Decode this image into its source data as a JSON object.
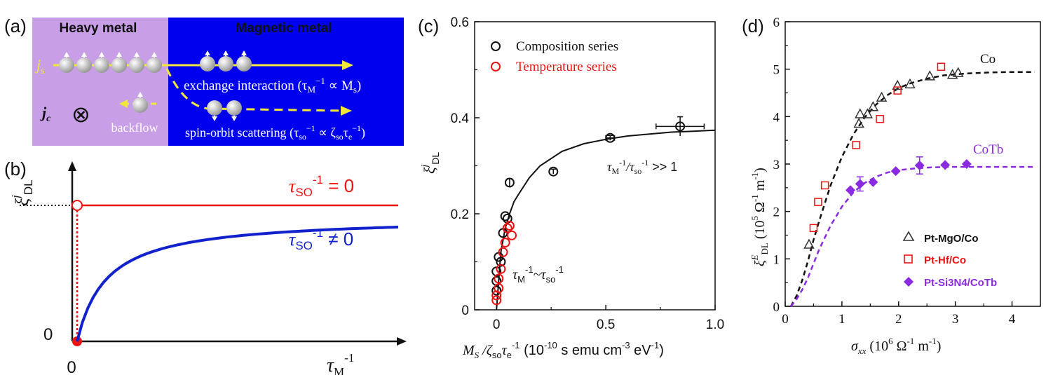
{
  "panel_a": {
    "label": "(a)",
    "heavy_metal": "Heavy metal",
    "magnetic_metal": "Magnetic metal",
    "js": "j",
    "js_sub": "s",
    "jc": "j",
    "jc_sub": "c",
    "otimes": "⊗",
    "backflow": "backflow",
    "exchange_text": "exchange interaction (τ",
    "exchange_mid": "M",
    "exchange_sup": "−1",
    "exchange_end": " ∝ M",
    "exchange_s": "s",
    "exchange_close": ")",
    "so_text": "spin-orbit scattering (τ",
    "so_sub": "so",
    "so_sup": "−1",
    "so_mid": " ∝ ζ",
    "so_sub2": "so",
    "so_tau": "τ",
    "so_e": "e",
    "so_sup2": "−1",
    "so_close": ")",
    "colors": {
      "heavy": "#c89ee6",
      "magnetic": "#0000ee",
      "arrow": "#f2e83a"
    }
  },
  "panel_b": {
    "label": "(b)",
    "ylabel": "ξ",
    "ylabel_sup": "j",
    "ylabel_sub": "DL",
    "xlabel": "τ",
    "xlabel_sub": "M",
    "xlabel_sup": "-1",
    "zero_y": "0",
    "zero_x": "0",
    "red_label": "τ",
    "red_sub": "SO",
    "red_sup": "-1",
    "red_eq": " = 0",
    "blue_label": "τ",
    "blue_sub": "SO",
    "blue_sup": "-1",
    "blue_eq": " ≠ 0",
    "colors": {
      "red": "#ee1111",
      "blue": "#1122cc"
    }
  },
  "chart_data": [
    {
      "type": "scatter",
      "panel": "(c)",
      "xlabel": "M",
      "xlabel_sub": "S",
      "xlabel_rest": " /ζ",
      "xlabel_so": "so",
      "xlabel_tau": "τ",
      "xlabel_e": "e",
      "xlabel_sup": "-1",
      "xlabel_units": " (10",
      "xlabel_exp": "-10",
      "xlabel_units2": " s emu cm",
      "xlabel_exp2": "-3",
      "xlabel_units3": " eV",
      "xlabel_exp3": "-1",
      "xlabel_close": ")",
      "ylabel": "ξ",
      "ylabel_sup": "j",
      "ylabel_sub": "DL",
      "xlim": [
        -0.1,
        1.0
      ],
      "ylim": [
        0,
        0.6
      ],
      "xticks": [
        "0",
        "0.5",
        "1.0"
      ],
      "xtick_values": [
        0,
        0.5,
        1.0
      ],
      "yticks": [
        "0",
        "0.2",
        "0.4",
        "0.6"
      ],
      "ytick_values": [
        0,
        0.2,
        0.4,
        0.6
      ],
      "annotation_high": "τ",
      "annotation_high_sub": "M",
      "annotation_high_sup": "-1",
      "annotation_high_mid": "/τ",
      "annotation_high_sub2": "so",
      "annotation_high_sup2": "-1",
      "annotation_high_end": " >> 1",
      "annotation_low": "τ",
      "annotation_low_sub": "M",
      "annotation_low_sup": "-1",
      "annotation_low_mid": "~τ",
      "annotation_low_sub2": "so",
      "annotation_low_sup2": "-1",
      "legend": [
        "Composition series",
        "Temperature series"
      ],
      "legend_position": "top-left",
      "series": [
        {
          "name": "Composition series",
          "color": "#111111",
          "points": [
            {
              "x": 0.0,
              "y": 0.04
            },
            {
              "x": 0.0,
              "y": 0.06
            },
            {
              "x": 0.0,
              "y": 0.08
            },
            {
              "x": 0.01,
              "y": 0.11
            },
            {
              "x": 0.02,
              "y": 0.1
            },
            {
              "x": 0.03,
              "y": 0.16
            },
            {
              "x": 0.04,
              "y": 0.195
            },
            {
              "x": 0.05,
              "y": 0.19
            },
            {
              "x": 0.06,
              "y": 0.265
            },
            {
              "x": 0.26,
              "y": 0.288
            },
            {
              "x": 0.52,
              "y": 0.358
            },
            {
              "x": 0.84,
              "y": 0.382
            }
          ],
          "xerr": [
            0,
            0,
            0,
            0,
            0,
            0,
            0,
            0,
            0,
            0,
            0.02,
            0.11
          ],
          "yerr": [
            0,
            0,
            0,
            0,
            0,
            0,
            0,
            0,
            0.008,
            0.005,
            0.005,
            0.02
          ]
        },
        {
          "name": "Temperature series",
          "color": "#ee1111",
          "points": [
            {
              "x": 0.0,
              "y": 0.02
            },
            {
              "x": 0.0,
              "y": 0.03
            },
            {
              "x": 0.01,
              "y": 0.045
            },
            {
              "x": 0.01,
              "y": 0.065
            },
            {
              "x": 0.02,
              "y": 0.085
            },
            {
              "x": 0.03,
              "y": 0.12
            },
            {
              "x": 0.04,
              "y": 0.14
            },
            {
              "x": 0.05,
              "y": 0.17
            },
            {
              "x": 0.06,
              "y": 0.175
            },
            {
              "x": 0.07,
              "y": 0.155
            }
          ]
        }
      ],
      "fit": {
        "name": "fit",
        "color": "#111111",
        "x": [
          0.0,
          0.02,
          0.04,
          0.06,
          0.08,
          0.1,
          0.15,
          0.2,
          0.3,
          0.4,
          0.5,
          0.6,
          0.7,
          0.8,
          0.9,
          1.0
        ],
        "y": [
          0.0,
          0.12,
          0.17,
          0.2,
          0.225,
          0.24,
          0.275,
          0.3,
          0.33,
          0.346,
          0.355,
          0.362,
          0.366,
          0.37,
          0.372,
          0.374
        ]
      }
    },
    {
      "type": "scatter",
      "panel": "(d)",
      "xlabel": "σ",
      "xlabel_sub": "xx",
      "xlabel_units": " (10",
      "xlabel_exp": "6",
      "xlabel_units2": " Ω",
      "xlabel_exp2": "-1",
      "xlabel_units3": " m",
      "xlabel_exp3": "-1",
      "xlabel_close": ")",
      "ylabel": "ξ",
      "ylabel_sup": "E",
      "ylabel_sub": "DL",
      "ylabel_units": " (10",
      "ylabel_exp": "5",
      "ylabel_units2": " Ω",
      "ylabel_exp2": "-1",
      "ylabel_units3": " m",
      "ylabel_exp3": "-1",
      "ylabel_close": ")",
      "xlim": [
        0,
        4.5
      ],
      "ylim": [
        0,
        6
      ],
      "xticks": [
        "0",
        "1",
        "2",
        "3",
        "4"
      ],
      "xtick_values": [
        0,
        1,
        2,
        3,
        4
      ],
      "yticks": [
        "0",
        "1",
        "2",
        "3",
        "4",
        "5",
        "6"
      ],
      "ytick_values": [
        0,
        1,
        2,
        3,
        4,
        5,
        6
      ],
      "curve_labels": [
        "Co",
        "CoTb"
      ],
      "legend": [
        "Pt-MgO/Co",
        "Pt-Hf/Co",
        "Pt-Si3N4/CoTb"
      ],
      "legend_position": "bottom-right",
      "series": [
        {
          "name": "Pt-MgO/Co",
          "color": "#333333",
          "marker": "triangle",
          "points": [
            {
              "x": 0.42,
              "y": 1.3
            },
            {
              "x": 1.3,
              "y": 3.85
            },
            {
              "x": 1.32,
              "y": 4.05
            },
            {
              "x": 1.45,
              "y": 4.05
            },
            {
              "x": 1.55,
              "y": 4.2
            },
            {
              "x": 1.7,
              "y": 4.4
            },
            {
              "x": 1.98,
              "y": 4.65
            },
            {
              "x": 2.2,
              "y": 4.68
            },
            {
              "x": 2.55,
              "y": 4.85
            },
            {
              "x": 2.95,
              "y": 4.88
            },
            {
              "x": 3.05,
              "y": 4.92
            }
          ]
        },
        {
          "name": "Pt-Hf/Co",
          "color": "#ee1111",
          "marker": "square",
          "points": [
            {
              "x": 0.5,
              "y": 1.65
            },
            {
              "x": 0.58,
              "y": 2.2
            },
            {
              "x": 0.7,
              "y": 2.55
            },
            {
              "x": 1.25,
              "y": 3.4
            },
            {
              "x": 1.67,
              "y": 3.95
            },
            {
              "x": 1.98,
              "y": 4.55
            },
            {
              "x": 2.75,
              "y": 5.05
            }
          ]
        },
        {
          "name": "Pt-Si3N4/CoTb",
          "color": "#8a2be2",
          "marker": "diamond",
          "points": [
            {
              "x": 1.15,
              "y": 2.45
            },
            {
              "x": 1.32,
              "y": 2.58
            },
            {
              "x": 1.55,
              "y": 2.62
            },
            {
              "x": 1.95,
              "y": 2.85
            },
            {
              "x": 2.37,
              "y": 2.97
            },
            {
              "x": 2.82,
              "y": 2.98
            },
            {
              "x": 3.2,
              "y": 3.0
            }
          ],
          "yerr": [
            0,
            0.15,
            0,
            0,
            0.18,
            0,
            0
          ]
        }
      ],
      "fits": [
        {
          "name": "Co",
          "color": "#111111",
          "x": [
            0.1,
            0.2,
            0.3,
            0.4,
            0.5,
            0.6,
            0.8,
            1.0,
            1.2,
            1.4,
            1.6,
            1.8,
            2.0,
            2.2,
            2.5,
            2.8,
            3.2,
            3.6,
            4.0,
            4.4
          ],
          "y": [
            0.0,
            0.22,
            0.55,
            0.95,
            1.4,
            1.8,
            2.55,
            3.15,
            3.62,
            3.98,
            4.25,
            4.45,
            4.6,
            4.7,
            4.8,
            4.87,
            4.91,
            4.93,
            4.94,
            4.94
          ]
        },
        {
          "name": "CoTb",
          "color": "#8a2be2",
          "x": [
            0.1,
            0.2,
            0.3,
            0.4,
            0.5,
            0.6,
            0.8,
            1.0,
            1.2,
            1.4,
            1.6,
            1.8,
            2.0,
            2.3,
            2.6,
            3.0,
            3.5,
            4.0,
            4.4
          ],
          "y": [
            0.0,
            0.15,
            0.35,
            0.6,
            0.9,
            1.2,
            1.7,
            2.1,
            2.4,
            2.6,
            2.73,
            2.82,
            2.87,
            2.91,
            2.93,
            2.94,
            2.94,
            2.94,
            2.94
          ]
        }
      ]
    }
  ]
}
